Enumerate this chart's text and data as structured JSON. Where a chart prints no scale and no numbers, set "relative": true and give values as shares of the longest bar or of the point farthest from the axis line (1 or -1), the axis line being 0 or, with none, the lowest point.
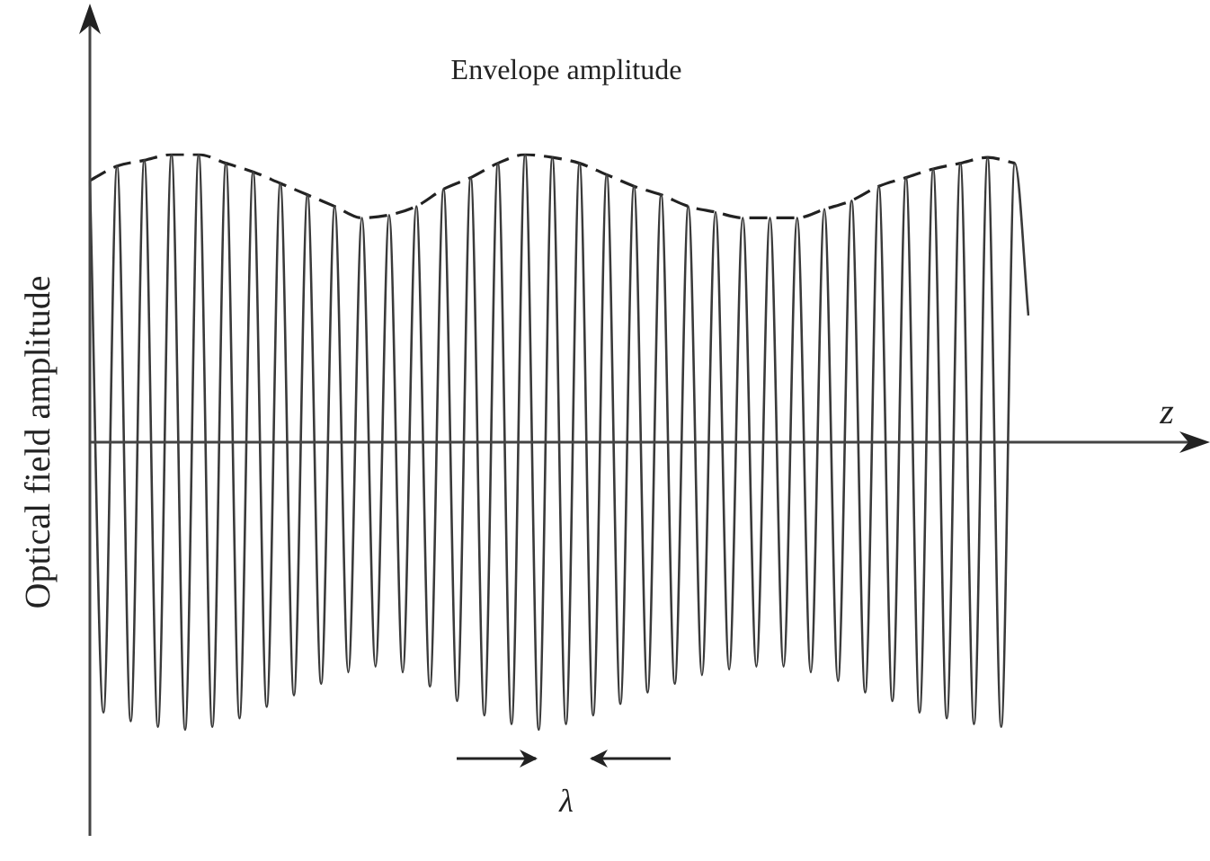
{
  "chart_data": {
    "type": "line",
    "relative": true,
    "xlabel": "z",
    "ylabel": "Optical field amplitude",
    "tick_labels": false,
    "marker": "none",
    "annotations": [
      "Envelope amplitude",
      "λ"
    ],
    "categories": [
      null,
      null,
      null,
      null,
      null,
      null,
      null,
      null,
      null,
      null,
      null,
      null,
      null,
      null,
      null,
      null,
      null,
      null,
      null,
      null,
      null,
      null,
      null,
      null,
      null,
      null,
      null,
      null,
      null,
      null,
      null,
      null,
      null,
      null,
      null,
      null,
      null,
      null,
      null,
      null,
      null,
      null,
      null,
      null,
      null,
      null,
      null,
      null,
      null,
      null,
      null,
      null,
      null,
      null,
      null,
      null,
      null,
      null,
      null,
      null,
      null,
      null,
      null,
      null,
      null,
      null,
      null,
      null,
      null,
      null
    ],
    "series": [
      {
        "color": "#3a3a3a",
        "line_style": "solid",
        "values": [
          0.91,
          -0.94,
          0.96,
          -0.97,
          0.98,
          -0.99,
          1.0,
          -1.0,
          1.0,
          -0.99,
          0.97,
          -0.96,
          0.94,
          -0.92,
          0.9,
          -0.88,
          0.86,
          -0.84,
          0.82,
          -0.8,
          0.78,
          -0.78,
          0.79,
          -0.8,
          0.82,
          -0.85,
          0.88,
          -0.9,
          0.92,
          -0.95,
          0.97,
          -0.98,
          1.0,
          -1.0,
          0.99,
          -0.98,
          0.97,
          -0.95,
          0.93,
          -0.91,
          0.89,
          -0.87,
          0.86,
          -0.84,
          0.82,
          -0.81,
          0.8,
          -0.79,
          0.78,
          -0.78,
          0.78,
          -0.78,
          0.78,
          -0.8,
          0.81,
          -0.83,
          0.84,
          -0.87,
          0.89,
          -0.9,
          0.92,
          -0.94,
          0.95,
          -0.96,
          0.97,
          -0.98,
          0.99,
          -0.99,
          0.97,
          0.44
        ]
      },
      {
        "color": "#222222",
        "line_style": "dashed",
        "values": [
          0.91,
          null,
          0.96,
          null,
          0.98,
          null,
          1.0,
          null,
          1.0,
          null,
          0.97,
          null,
          0.94,
          null,
          0.9,
          null,
          0.86,
          null,
          0.82,
          null,
          0.78,
          null,
          0.79,
          null,
          0.82,
          null,
          0.88,
          null,
          0.92,
          null,
          0.97,
          null,
          1.0,
          null,
          0.99,
          null,
          0.97,
          null,
          0.93,
          null,
          0.89,
          null,
          0.86,
          null,
          0.82,
          null,
          0.8,
          null,
          0.78,
          null,
          0.78,
          null,
          0.78,
          null,
          0.81,
          null,
          0.84,
          null,
          0.89,
          null,
          0.92,
          null,
          0.95,
          null,
          0.97,
          null,
          0.99,
          null,
          0.97,
          null
        ]
      }
    ]
  }
}
